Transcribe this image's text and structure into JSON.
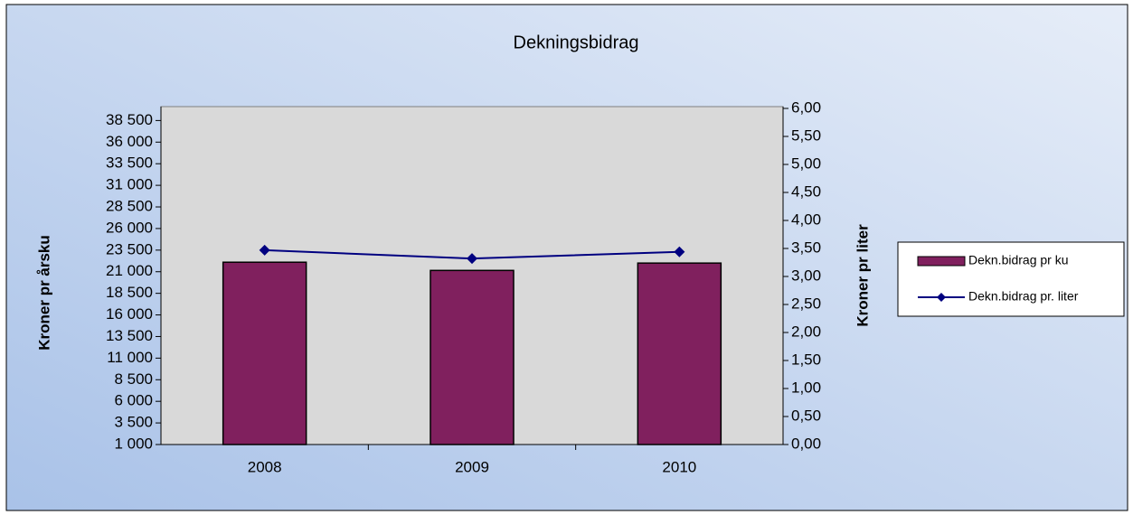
{
  "chart_data": {
    "type": "bar-line",
    "title": "Dekningsbidrag",
    "categories": [
      "2008",
      "2009",
      "2010"
    ],
    "series": [
      {
        "name": "Dekn.bidrag pr ku",
        "type": "bar",
        "axis": "y",
        "color": "#80205e",
        "values": [
          22100,
          21150,
          22000
        ]
      },
      {
        "name": "Dekn.bidrag pr. liter",
        "type": "line",
        "axis": "y2",
        "color": "#000080",
        "values": [
          3.47,
          3.32,
          3.44
        ]
      }
    ],
    "ylabel": "Kroner pr årsku",
    "y2label": "Kroner pr liter",
    "ylim": [
      1000,
      39900
    ],
    "yticks": [
      {
        "value": 1000,
        "label": "1 000"
      },
      {
        "value": 3500,
        "label": "3 500"
      },
      {
        "value": 6000,
        "label": "6 000"
      },
      {
        "value": 8500,
        "label": "8 500"
      },
      {
        "value": 11000,
        "label": "11 000"
      },
      {
        "value": 13500,
        "label": "13 500"
      },
      {
        "value": 16000,
        "label": "16 000"
      },
      {
        "value": 18500,
        "label": "18 500"
      },
      {
        "value": 21000,
        "label": "21 000"
      },
      {
        "value": 23500,
        "label": "23 500"
      },
      {
        "value": 26000,
        "label": "26 000"
      },
      {
        "value": 28500,
        "label": "28 500"
      },
      {
        "value": 31000,
        "label": "31 000"
      },
      {
        "value": 33500,
        "label": "33 500"
      },
      {
        "value": 36000,
        "label": "36 000"
      },
      {
        "value": 38500,
        "label": "38 500"
      }
    ],
    "y2lim": [
      0,
      6
    ],
    "y2ticks": [
      {
        "value": 0,
        "label": "0,00"
      },
      {
        "value": 0.5,
        "label": "0,50"
      },
      {
        "value": 1,
        "label": "1,00"
      },
      {
        "value": 1.5,
        "label": "1,50"
      },
      {
        "value": 2,
        "label": "2,00"
      },
      {
        "value": 2.5,
        "label": "2,50"
      },
      {
        "value": 3,
        "label": "3,00"
      },
      {
        "value": 3.5,
        "label": "3,50"
      },
      {
        "value": 4,
        "label": "4,00"
      },
      {
        "value": 4.5,
        "label": "4,50"
      },
      {
        "value": 5,
        "label": "5,00"
      },
      {
        "value": 5.5,
        "label": "5,50"
      },
      {
        "value": 6,
        "label": "6,00"
      }
    ],
    "legend": "right"
  }
}
